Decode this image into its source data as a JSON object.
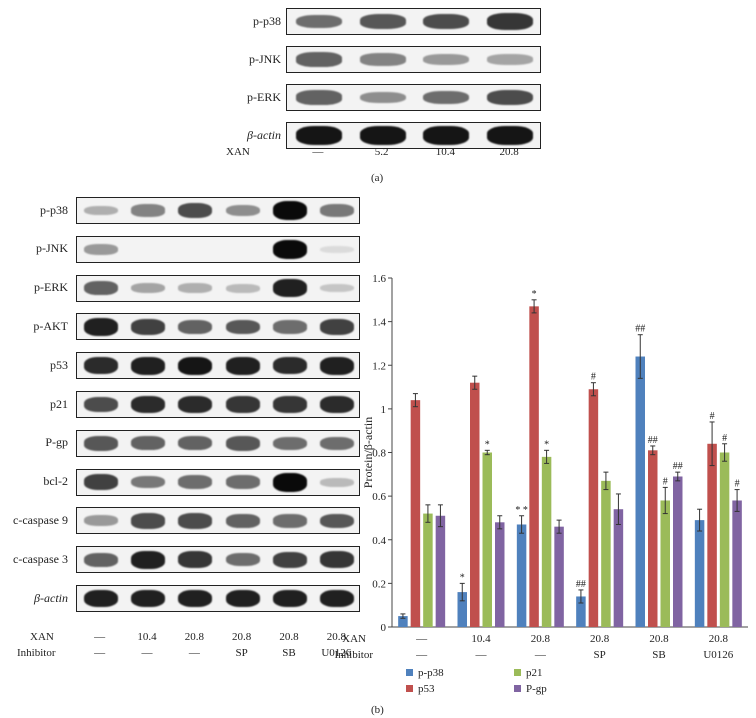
{
  "panel_a": {
    "rows": [
      "p-p38",
      "p-JNK",
      "p-ERK",
      "β-actin"
    ],
    "row_intensities": [
      [
        0.55,
        0.65,
        0.7,
        0.8
      ],
      [
        0.6,
        0.45,
        0.35,
        0.3
      ],
      [
        0.6,
        0.4,
        0.55,
        0.7
      ],
      [
        0.95,
        0.95,
        0.95,
        0.95
      ]
    ],
    "xan_label": "XAN",
    "xan_values": [
      "—",
      "5.2",
      "10.4",
      "20.8"
    ],
    "caption": "(a)"
  },
  "panel_b": {
    "rows": [
      "p-p38",
      "p-JNK",
      "p-ERK",
      "p-AKT",
      "p53",
      "p21",
      "P-gp",
      "bcl-2",
      "c-caspase 9",
      "c-caspase 3",
      "β-actin"
    ],
    "row_intensities": [
      [
        0.25,
        0.45,
        0.7,
        0.4,
        1.0,
        0.5
      ],
      [
        0.35,
        0.0,
        0.0,
        0.0,
        1.0,
        0.05
      ],
      [
        0.6,
        0.3,
        0.25,
        0.2,
        0.9,
        0.15
      ],
      [
        0.9,
        0.75,
        0.6,
        0.65,
        0.55,
        0.75
      ],
      [
        0.85,
        0.9,
        0.95,
        0.9,
        0.85,
        0.9
      ],
      [
        0.7,
        0.85,
        0.85,
        0.8,
        0.8,
        0.85
      ],
      [
        0.65,
        0.6,
        0.6,
        0.65,
        0.55,
        0.55
      ],
      [
        0.75,
        0.5,
        0.55,
        0.55,
        1.0,
        0.2
      ],
      [
        0.35,
        0.7,
        0.7,
        0.6,
        0.55,
        0.65
      ],
      [
        0.6,
        0.9,
        0.8,
        0.55,
        0.75,
        0.8
      ],
      [
        0.9,
        0.9,
        0.9,
        0.9,
        0.9,
        0.9
      ]
    ],
    "xan_label": "XAN",
    "xan_values": [
      "—",
      "10.4",
      "20.8",
      "20.8",
      "20.8",
      "20.8"
    ],
    "inhibitor_label": "Inhibitor",
    "inhibitor_values": [
      "—",
      "—",
      "—",
      "SP",
      "SB",
      "U0126"
    ],
    "caption": "(b)"
  },
  "chart_data": {
    "type": "bar",
    "ylabel": "Protein/β-actin",
    "ylim": [
      0,
      1.6
    ],
    "yticks": [
      "0",
      "0.2",
      "0.4",
      "0.6",
      "0.8",
      "1",
      "1.2",
      "1.4",
      "1.6"
    ],
    "row_label_xan": "XAN",
    "row_label_inhibitor": "Inhibitor",
    "categories_xan": [
      "—",
      "10.4",
      "20.8",
      "20.8",
      "20.8",
      "20.8"
    ],
    "categories_inhibitor": [
      "—",
      "—",
      "—",
      "SP",
      "SB",
      "U0126"
    ],
    "series": [
      {
        "name": "p-p38",
        "color": "#4f81bd",
        "values": [
          0.05,
          0.16,
          0.47,
          0.14,
          1.24,
          0.49
        ],
        "errors": [
          0.01,
          0.04,
          0.04,
          0.03,
          0.1,
          0.05
        ],
        "annotations": [
          "",
          "*",
          "* *",
          "##",
          "##",
          ""
        ]
      },
      {
        "name": "p53",
        "color": "#c0504d",
        "values": [
          1.04,
          1.12,
          1.47,
          1.09,
          0.81,
          0.84
        ],
        "errors": [
          0.03,
          0.03,
          0.03,
          0.03,
          0.02,
          0.1
        ],
        "annotations": [
          "",
          "",
          "*",
          "#",
          "##",
          "#"
        ]
      },
      {
        "name": "p21",
        "color": "#9bbb59",
        "values": [
          0.52,
          0.8,
          0.78,
          0.67,
          0.58,
          0.8
        ],
        "errors": [
          0.04,
          0.01,
          0.03,
          0.04,
          0.06,
          0.04
        ],
        "annotations": [
          "",
          "*",
          "*",
          "",
          "#",
          "#"
        ]
      },
      {
        "name": "P-gp",
        "color": "#8064a2",
        "values": [
          0.51,
          0.48,
          0.46,
          0.54,
          0.69,
          0.58
        ],
        "errors": [
          0.05,
          0.03,
          0.03,
          0.07,
          0.02,
          0.05
        ],
        "annotations": [
          "",
          "",
          "",
          "",
          "##",
          "#"
        ]
      }
    ],
    "legend": [
      "p-p38",
      "p21",
      "p53",
      "P-gp"
    ]
  }
}
